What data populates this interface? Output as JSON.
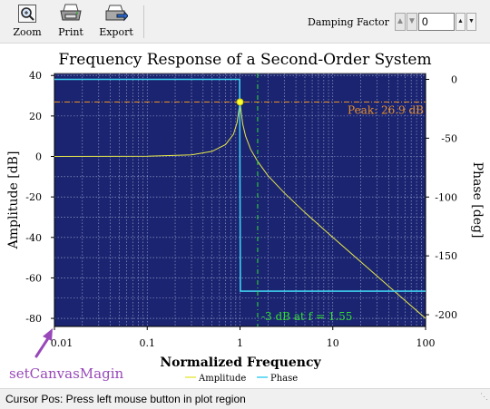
{
  "toolbar": {
    "zoom_label": "Zoom",
    "print_label": "Print",
    "export_label": "Export",
    "damping_label": "Damping Factor",
    "damping_value": "0"
  },
  "chart_data": {
    "type": "line",
    "title": "Frequency Response of a Second-Order System",
    "xlabel": "Normalized Frequency",
    "ylabel": "Amplitude [dB]",
    "y2label": "Phase [deg]",
    "x_scale": "log",
    "xlim": [
      0.01,
      100
    ],
    "ylim": [
      -84,
      41
    ],
    "y2lim": [
      -210,
      5
    ],
    "x_ticks": [
      "0.01",
      "0.1",
      "1",
      "10",
      "100"
    ],
    "x_tick_values": [
      0.01,
      0.1,
      1,
      10,
      100
    ],
    "y_ticks": [
      40,
      20,
      0,
      -20,
      -40,
      -60,
      -80
    ],
    "y2_ticks": [
      0,
      -50,
      -100,
      -150,
      -200
    ],
    "grid": true,
    "legend_placement": "bottom",
    "series": [
      {
        "name": "Amplitude",
        "axis": "left",
        "color": "#e8e84a",
        "x": [
          0.01,
          0.1,
          0.3,
          0.5,
          0.7,
          0.85,
          0.93,
          0.97,
          1.0,
          1.03,
          1.07,
          1.15,
          1.3,
          1.55,
          2,
          3,
          5,
          10,
          20,
          50,
          100
        ],
        "y": [
          0,
          0.1,
          0.8,
          2.5,
          5.9,
          11.0,
          16.7,
          22.5,
          26.9,
          22.0,
          16.0,
          10.0,
          3.5,
          -2.5,
          -9.5,
          -18.0,
          -27.7,
          -40.0,
          -52.0,
          -68.0,
          -80.0
        ]
      },
      {
        "name": "Phase",
        "axis": "right",
        "color": "#40d0f0",
        "x": [
          0.01,
          0.99,
          1.0,
          1.01,
          100
        ],
        "y": [
          0,
          0,
          -90,
          -180,
          -180
        ]
      }
    ],
    "annotations": [
      {
        "text": "Peak: 26.9 dB",
        "x": 1.0,
        "y": 26.9,
        "color": "#e89028"
      },
      {
        "text": "-3 dB at f = 1.55",
        "x": 1.55,
        "color": "#30e030"
      }
    ]
  },
  "overlay": {
    "label": "setCanvasMagin",
    "color": "#9848b8"
  },
  "status": {
    "text": "Cursor Pos: Press left mouse button in plot region"
  }
}
